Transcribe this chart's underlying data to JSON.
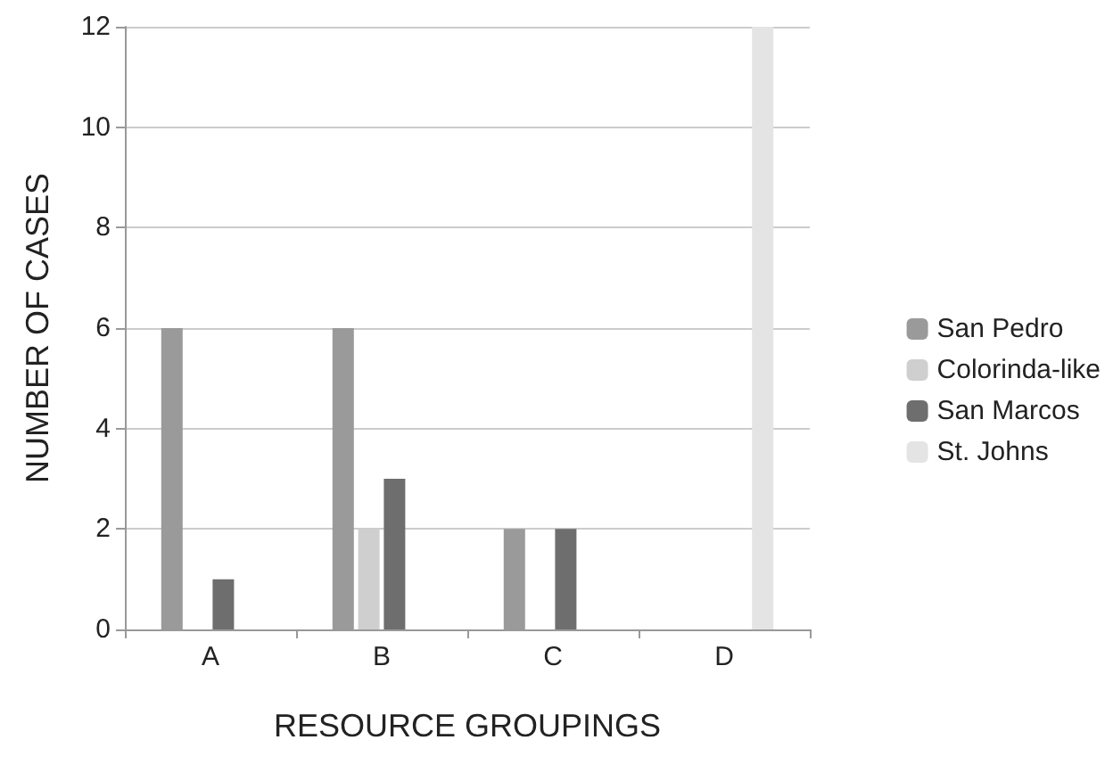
{
  "chart_data": {
    "type": "bar",
    "xlabel": "RESOURCE GROUPINGS",
    "ylabel": "NUMBER OF CASES",
    "categories": [
      "A",
      "B",
      "C",
      "D"
    ],
    "series": [
      {
        "name": "San Pedro",
        "color": "#9a9a9a",
        "values": [
          6,
          6,
          2,
          0
        ]
      },
      {
        "name": "Colorinda-like",
        "color": "#cfcfcf",
        "values": [
          0,
          2,
          0,
          0
        ]
      },
      {
        "name": "San Marcos",
        "color": "#6e6e6e",
        "values": [
          1,
          3,
          2,
          0
        ]
      },
      {
        "name": "St. Johns",
        "color": "#e4e4e4",
        "values": [
          0,
          0,
          0,
          12
        ]
      }
    ],
    "ylim": [
      0,
      12
    ],
    "yticks": [
      0,
      2,
      4,
      6,
      8,
      10,
      12
    ],
    "grid": "y",
    "legend": "right"
  }
}
